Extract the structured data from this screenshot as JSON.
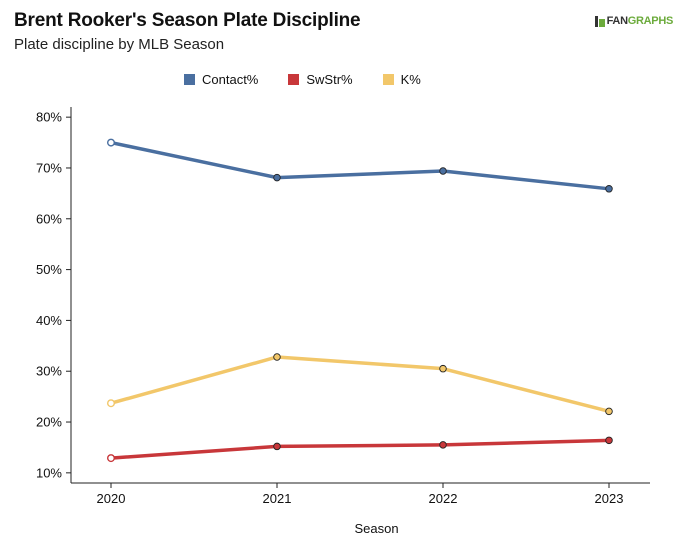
{
  "title": "Brent Rooker's Season Plate Discipline",
  "subtitle": "Plate discipline by MLB Season",
  "brand": {
    "fan": "FAN",
    "graphs": "GRAPHS",
    "icon": "fangraphs-logo-icon"
  },
  "chart_data": {
    "type": "line",
    "title": "Brent Rooker's Season Plate Discipline",
    "subtitle": "Plate discipline by MLB Season",
    "xlabel": "Season",
    "ylabel": "",
    "x": [
      "2020",
      "2021",
      "2022",
      "2023"
    ],
    "ylim": [
      8,
      82
    ],
    "yticks": [
      10,
      20,
      30,
      40,
      50,
      60,
      70,
      80
    ],
    "ytick_labels": [
      "10%",
      "20%",
      "30%",
      "40%",
      "50%",
      "60%",
      "70%",
      "80%"
    ],
    "grid": false,
    "legend": "top",
    "series": [
      {
        "name": "Contact%",
        "color": "#4a6fa0",
        "values": [
          75.0,
          68.1,
          69.4,
          65.9
        ]
      },
      {
        "name": "SwStr%",
        "color": "#c8373a",
        "values": [
          12.9,
          15.2,
          15.5,
          16.4
        ]
      },
      {
        "name": "K%",
        "color": "#f2c76a",
        "values": [
          23.7,
          32.8,
          30.5,
          22.1
        ]
      }
    ],
    "open_markers_first_point": true
  }
}
